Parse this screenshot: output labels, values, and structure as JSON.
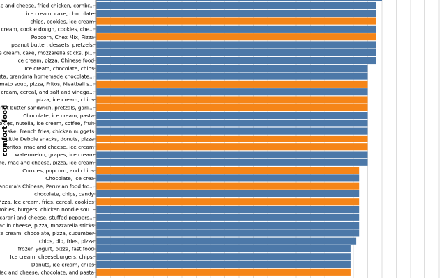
{
  "chart_data": {
    "type": "bar",
    "orientation": "horizontal",
    "ylabel": "comfort_food",
    "xlabel": "",
    "grid": true,
    "colors": {
      "blue": "#4c78a8",
      "orange": "#f58518",
      "grid": "#dddddd",
      "axis": "#888888"
    },
    "xlim": [
      0,
      1.2
    ],
    "top_bar_value": 1.0,
    "categories": [
      "Mac and cheese, fried chicken, cornbr...",
      "ice cream, cake, chocolate",
      "chips, cookies, ice cream",
      "ice cream, cookie dough, cookies, che...",
      "Popcorn, Chex Mix, Pizza",
      "peanut butter, dessets, pretzels.",
      "Ice cream, cake, mozzarella sticks, pi...",
      "ice cream, pizza, Chinese food",
      "Ice cream, chocolate, chips",
      "Pasta, grandma homemade chocolate...",
      "Tomato soup, pizza, Fritos, Meatball s...",
      "ice cream, cereal, and salt and vinega...",
      "pizza, ice cream, chips",
      "peanut butter sandwich, pretzals, garli...",
      "Chocolate, ice cream, pasta",
      "cookies, nutella, ice cream, coffee, fruit",
      "cake, French fries, chicken nuggets",
      "Little Debbie snacks, donuts, pizza",
      "Doritos, mac and cheese, ice cream",
      "watermelon, grapes, ice cream",
      "wine, mac and cheese, pizza, ice cream",
      "Cookies, popcorn, and chips",
      "Chocolate, ice crea",
      "Grandma's Chinese, Peruvian food fro...",
      "chocolate, chips, candy",
      "Pizza, Ice cream, fries, cereal, cookies",
      "Cookies, burgers, chicken noodle sou...",
      "macaroni and cheese, stuffed peppers...",
      "Mac in cheese, pizza, mozzarella sticks",
      "Ice cream, chocolate, pizza, cucumber",
      "chips, dip, fries, pizza",
      "frozen yogurt, pizza, fast food",
      "Ice cream, cheeseburgers, chips.",
      "Donuts, ice cream, chips",
      "Mac and cheese, chocolate, and pasta"
    ],
    "values": [
      0.98,
      0.98,
      0.98,
      0.98,
      0.98,
      0.98,
      0.98,
      0.98,
      0.95,
      0.95,
      0.95,
      0.95,
      0.95,
      0.95,
      0.95,
      0.95,
      0.95,
      0.95,
      0.95,
      0.95,
      0.95,
      0.92,
      0.92,
      0.92,
      0.92,
      0.92,
      0.92,
      0.92,
      0.92,
      0.92,
      0.91,
      0.89,
      0.89,
      0.89,
      0.89
    ],
    "bar_colors": [
      "blue",
      "blue",
      "orange",
      "blue",
      "orange",
      "blue",
      "blue",
      "blue",
      "blue",
      "blue",
      "orange",
      "blue",
      "orange",
      "orange",
      "blue",
      "blue",
      "blue",
      "orange",
      "orange",
      "blue",
      "blue",
      "orange",
      "blue",
      "orange",
      "blue",
      "orange",
      "blue",
      "blue",
      "blue",
      "blue",
      "blue",
      "blue",
      "blue",
      "blue",
      "orange"
    ]
  }
}
